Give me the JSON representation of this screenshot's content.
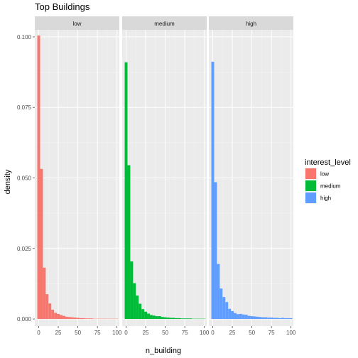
{
  "chart_data": {
    "type": "bar",
    "title": "Top Buildings",
    "xlabel": "n_building",
    "ylabel": "density",
    "xlim": [
      -5,
      103
    ],
    "ylim": [
      -0.0025,
      0.1025
    ],
    "x_ticks": [
      0,
      25,
      50,
      75,
      100
    ],
    "y_ticks": [
      0.0,
      0.025,
      0.05,
      0.075,
      0.1
    ],
    "y_tick_labels": [
      "0.000",
      "0.025",
      "0.050",
      "0.075",
      "0.100"
    ],
    "bin_starts": [
      -1.79,
      1.79,
      5.36,
      8.93,
      12.5,
      16.07,
      19.64,
      23.21,
      26.79,
      30.36,
      33.93,
      37.5,
      41.07,
      44.64,
      48.21,
      51.79,
      55.36,
      58.93,
      62.5,
      66.07,
      69.64,
      73.21,
      76.79,
      80.36,
      83.93,
      87.5,
      91.07,
      94.64,
      98.21
    ],
    "bin_width": 3.57,
    "legend": {
      "title": "interest_level",
      "position": "right"
    },
    "grid": true,
    "series": [
      {
        "name": "low",
        "color": "#F8766D",
        "values": [
          0.1005,
          0.0532,
          0.0182,
          0.0088,
          0.0055,
          0.0033,
          0.0022,
          0.0018,
          0.0014,
          0.0011,
          0.0008,
          0.0007,
          0.0006,
          0.0005,
          0.0004,
          0.0003,
          0.0003,
          0.0002,
          0.0002,
          0.0002,
          0.0001,
          0.0001,
          0.0001,
          0.0001,
          0.0001,
          0.0001,
          0.0001,
          0.0001,
          0.0001
        ]
      },
      {
        "name": "medium",
        "color": "#00BA38",
        "values": [
          0.091,
          0.0545,
          0.0204,
          0.0127,
          0.0083,
          0.0054,
          0.0035,
          0.0026,
          0.0019,
          0.0014,
          0.0012,
          0.001,
          0.001,
          0.0007,
          0.0006,
          0.0005,
          0.0004,
          0.0004,
          0.0003,
          0.0003,
          0.0002,
          0.0002,
          0.0002,
          0.0002,
          0.0001,
          0.0001,
          0.0001,
          0.0001,
          0.0001
        ]
      },
      {
        "name": "high",
        "color": "#619CFF",
        "values": [
          0.0912,
          0.0485,
          0.0195,
          0.0108,
          0.0078,
          0.006,
          0.0036,
          0.0028,
          0.0021,
          0.0017,
          0.0018,
          0.0016,
          0.0015,
          0.0011,
          0.001,
          0.0009,
          0.0008,
          0.0007,
          0.0006,
          0.0006,
          0.0005,
          0.0005,
          0.0004,
          0.0004,
          0.0003,
          0.0004,
          0.0003,
          0.0003,
          0.0003
        ]
      }
    ]
  }
}
